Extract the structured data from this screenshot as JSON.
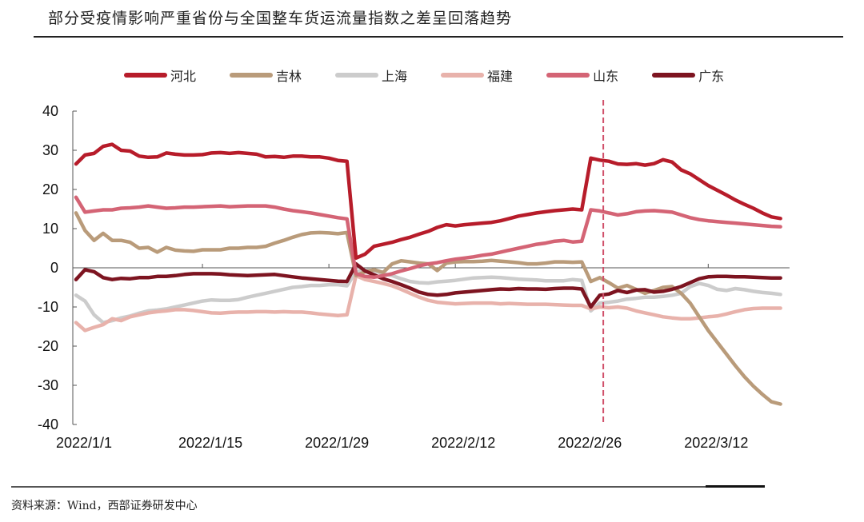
{
  "title": "部分受疫情影响严重省份与全国整车货运流量指数之差呈回落趋势",
  "source": "资料来源：Wind，西部证券研发中心",
  "legend": [
    {
      "name": "河北",
      "color": "#b71c2a"
    },
    {
      "name": "吉林",
      "color": "#b99b7a"
    },
    {
      "name": "上海",
      "color": "#cccccc"
    },
    {
      "name": "福建",
      "color": "#e8b2ab"
    },
    {
      "name": "山东",
      "color": "#d46475"
    },
    {
      "name": "广东",
      "color": "#7d1420"
    }
  ],
  "chart_data": {
    "type": "line",
    "title": "部分受疫情影响严重省份与全国整车货运流量指数之差呈回落趋势",
    "xlabel": "",
    "ylabel": "",
    "ylim": [
      -40,
      40
    ],
    "yticks": [
      40,
      30,
      20,
      10,
      0,
      -10,
      -20,
      -30,
      -40
    ],
    "xtick_labels": [
      "2022/1/1",
      "2022/1/15",
      "2022/1/29",
      "2022/2/12",
      "2022/2/26",
      "2022/3/12"
    ],
    "xtick_days": [
      0,
      14,
      28,
      42,
      56,
      70
    ],
    "x_unit": "days since 2022/1/1",
    "grid": false,
    "legend_position": "top",
    "annotation": {
      "type": "vertical-dashed-line",
      "day": 59,
      "color": "#d0506a"
    },
    "x": [
      0,
      1,
      2,
      3,
      4,
      5,
      6,
      7,
      8,
      9,
      10,
      11,
      12,
      13,
      14,
      15,
      16,
      17,
      18,
      19,
      20,
      21,
      22,
      23,
      24,
      25,
      26,
      27,
      28,
      29,
      30,
      31,
      32,
      33,
      34,
      35,
      36,
      37,
      38,
      39,
      40,
      41,
      42,
      43,
      44,
      45,
      46,
      47,
      48,
      49,
      50,
      51,
      52,
      53,
      54,
      55,
      56,
      57,
      58,
      59,
      60,
      61,
      62,
      63,
      64,
      65,
      66,
      67,
      68,
      69,
      70,
      71,
      72,
      73,
      74,
      75,
      76,
      77,
      78
    ],
    "series": [
      {
        "name": "河北",
        "color": "#b71c2a",
        "values": [
          26.5,
          28.8,
          29.2,
          31.0,
          31.5,
          30.0,
          29.8,
          28.5,
          28.2,
          28.3,
          29.3,
          29.0,
          28.8,
          28.8,
          28.9,
          29.3,
          29.4,
          29.2,
          29.4,
          29.2,
          29.0,
          28.3,
          28.4,
          28.2,
          28.5,
          28.5,
          28.3,
          28.3,
          28.0,
          27.4,
          27.2,
          2.5,
          3.5,
          5.5,
          6.0,
          6.5,
          7.2,
          7.8,
          8.6,
          9.3,
          10.3,
          11.0,
          10.7,
          11.0,
          11.2,
          11.4,
          11.6,
          12.0,
          12.6,
          13.2,
          13.6,
          14.0,
          14.3,
          14.6,
          14.8,
          15.0,
          14.8,
          28.0,
          27.5,
          27.2,
          26.5,
          26.4,
          26.6,
          26.2,
          26.6,
          27.6,
          27.0,
          25.0,
          24.0,
          22.5,
          21.0,
          19.8,
          18.6,
          17.3,
          16.2,
          15.2,
          14.0,
          13.0,
          12.6
        ]
      },
      {
        "name": "吉林",
        "color": "#b99b7a",
        "values": [
          14.0,
          9.5,
          7.0,
          8.8,
          7.0,
          7.0,
          6.5,
          5.0,
          5.2,
          4.0,
          5.2,
          4.5,
          4.3,
          4.2,
          4.6,
          4.6,
          4.6,
          5.0,
          5.0,
          5.2,
          5.2,
          5.5,
          6.3,
          7.0,
          7.8,
          8.5,
          8.9,
          9.0,
          8.9,
          8.7,
          9.0,
          -2.0,
          -1.0,
          -0.5,
          -1.2,
          1.0,
          1.8,
          1.5,
          1.2,
          1.0,
          -0.7,
          1.2,
          1.5,
          1.6,
          1.6,
          1.7,
          1.9,
          1.7,
          1.5,
          1.3,
          1.0,
          1.0,
          1.2,
          1.5,
          1.5,
          1.4,
          1.5,
          -3.5,
          -2.5,
          -3.8,
          -5.2,
          -4.5,
          -5.5,
          -6.5,
          -5.8,
          -5.0,
          -4.8,
          -6.5,
          -9.0,
          -12.5,
          -16.0,
          -19.0,
          -22.0,
          -25.0,
          -27.8,
          -30.2,
          -32.3,
          -34.2,
          -34.8
        ]
      },
      {
        "name": "上海",
        "color": "#cccccc",
        "values": [
          -7.0,
          -8.5,
          -12.0,
          -14.0,
          -13.5,
          -12.8,
          -12.3,
          -11.6,
          -11.0,
          -10.8,
          -10.5,
          -10.0,
          -9.5,
          -9.0,
          -8.5,
          -8.2,
          -8.3,
          -8.3,
          -8.1,
          -7.5,
          -7.0,
          -6.5,
          -6.0,
          -5.5,
          -5.0,
          -4.8,
          -4.5,
          -4.5,
          -4.3,
          -4.3,
          -4.6,
          -1.0,
          -0.5,
          -0.8,
          -1.5,
          -2.0,
          -2.8,
          -3.5,
          -3.8,
          -3.9,
          -3.6,
          -3.4,
          -3.2,
          -2.9,
          -2.6,
          -2.5,
          -2.4,
          -2.5,
          -2.7,
          -2.9,
          -3.0,
          -3.1,
          -3.3,
          -3.3,
          -3.3,
          -3.0,
          -3.2,
          -11.0,
          -9.0,
          -8.8,
          -8.5,
          -8.0,
          -7.8,
          -7.5,
          -7.5,
          -7.3,
          -7.0,
          -6.5,
          -4.8,
          -4.0,
          -4.5,
          -5.5,
          -5.8,
          -5.3,
          -5.6,
          -6.0,
          -6.3,
          -6.5,
          -6.8
        ]
      },
      {
        "name": "福建",
        "color": "#e8b2ab",
        "values": [
          -14.0,
          -16.0,
          -15.2,
          -14.5,
          -13.0,
          -13.5,
          -12.5,
          -12.0,
          -11.5,
          -11.2,
          -11.0,
          -10.7,
          -10.7,
          -10.9,
          -11.2,
          -11.5,
          -11.6,
          -11.4,
          -11.3,
          -11.3,
          -11.2,
          -11.2,
          -11.3,
          -11.2,
          -11.3,
          -11.3,
          -11.5,
          -11.8,
          -12.0,
          -12.2,
          -12.0,
          -2.0,
          -3.0,
          -3.5,
          -4.0,
          -4.6,
          -5.5,
          -6.5,
          -7.5,
          -8.3,
          -8.8,
          -9.0,
          -9.2,
          -9.1,
          -9.0,
          -9.0,
          -9.0,
          -9.2,
          -9.1,
          -9.2,
          -9.3,
          -9.3,
          -9.3,
          -9.4,
          -9.5,
          -9.6,
          -9.6,
          -10.5,
          -10.0,
          -10.2,
          -10.0,
          -10.3,
          -11.0,
          -11.5,
          -12.0,
          -12.5,
          -12.8,
          -13.0,
          -13.0,
          -12.8,
          -12.5,
          -12.3,
          -11.8,
          -11.2,
          -10.7,
          -10.4,
          -10.3,
          -10.3,
          -10.3
        ]
      },
      {
        "name": "山东",
        "color": "#d46475",
        "values": [
          18.0,
          14.2,
          14.5,
          14.8,
          14.8,
          15.2,
          15.3,
          15.5,
          15.8,
          15.5,
          15.2,
          15.3,
          15.5,
          15.5,
          15.6,
          15.7,
          15.8,
          15.6,
          15.7,
          15.8,
          15.8,
          15.8,
          15.5,
          15.0,
          14.6,
          14.3,
          14.0,
          13.6,
          13.2,
          12.8,
          12.5,
          -1.5,
          -2.2,
          -2.4,
          -2.0,
          -1.5,
          -0.8,
          -0.2,
          0.5,
          1.0,
          1.3,
          1.8,
          2.2,
          2.5,
          2.8,
          3.2,
          3.5,
          4.0,
          4.5,
          5.0,
          5.5,
          6.0,
          6.3,
          6.8,
          7.0,
          6.6,
          6.8,
          14.8,
          14.5,
          14.0,
          13.5,
          13.8,
          14.3,
          14.5,
          14.6,
          14.4,
          14.2,
          13.5,
          12.8,
          12.3,
          12.0,
          11.8,
          11.6,
          11.4,
          11.2,
          11.0,
          10.8,
          10.6,
          10.5
        ]
      },
      {
        "name": "广东",
        "color": "#7d1420",
        "values": [
          -3.0,
          -0.5,
          -1.0,
          -2.5,
          -3.0,
          -2.7,
          -2.8,
          -2.5,
          -2.5,
          -2.2,
          -2.2,
          -2.0,
          -1.7,
          -1.5,
          -1.5,
          -1.5,
          -1.6,
          -1.8,
          -1.9,
          -2.0,
          -1.9,
          -1.8,
          -1.7,
          -2.0,
          -2.3,
          -2.6,
          -2.8,
          -3.0,
          -3.2,
          -3.4,
          -3.5,
          1.0,
          -0.8,
          -1.8,
          -2.8,
          -3.5,
          -4.3,
          -5.2,
          -6.2,
          -6.8,
          -7.0,
          -6.8,
          -6.4,
          -6.2,
          -6.0,
          -5.8,
          -5.6,
          -5.4,
          -5.5,
          -5.3,
          -5.4,
          -5.4,
          -5.5,
          -5.3,
          -5.2,
          -5.2,
          -5.4,
          -10.0,
          -7.0,
          -6.7,
          -5.8,
          -6.3,
          -5.7,
          -5.6,
          -6.2,
          -6.0,
          -5.5,
          -4.8,
          -3.8,
          -2.8,
          -2.3,
          -2.2,
          -2.2,
          -2.3,
          -2.3,
          -2.4,
          -2.5,
          -2.6,
          -2.6
        ]
      }
    ]
  }
}
